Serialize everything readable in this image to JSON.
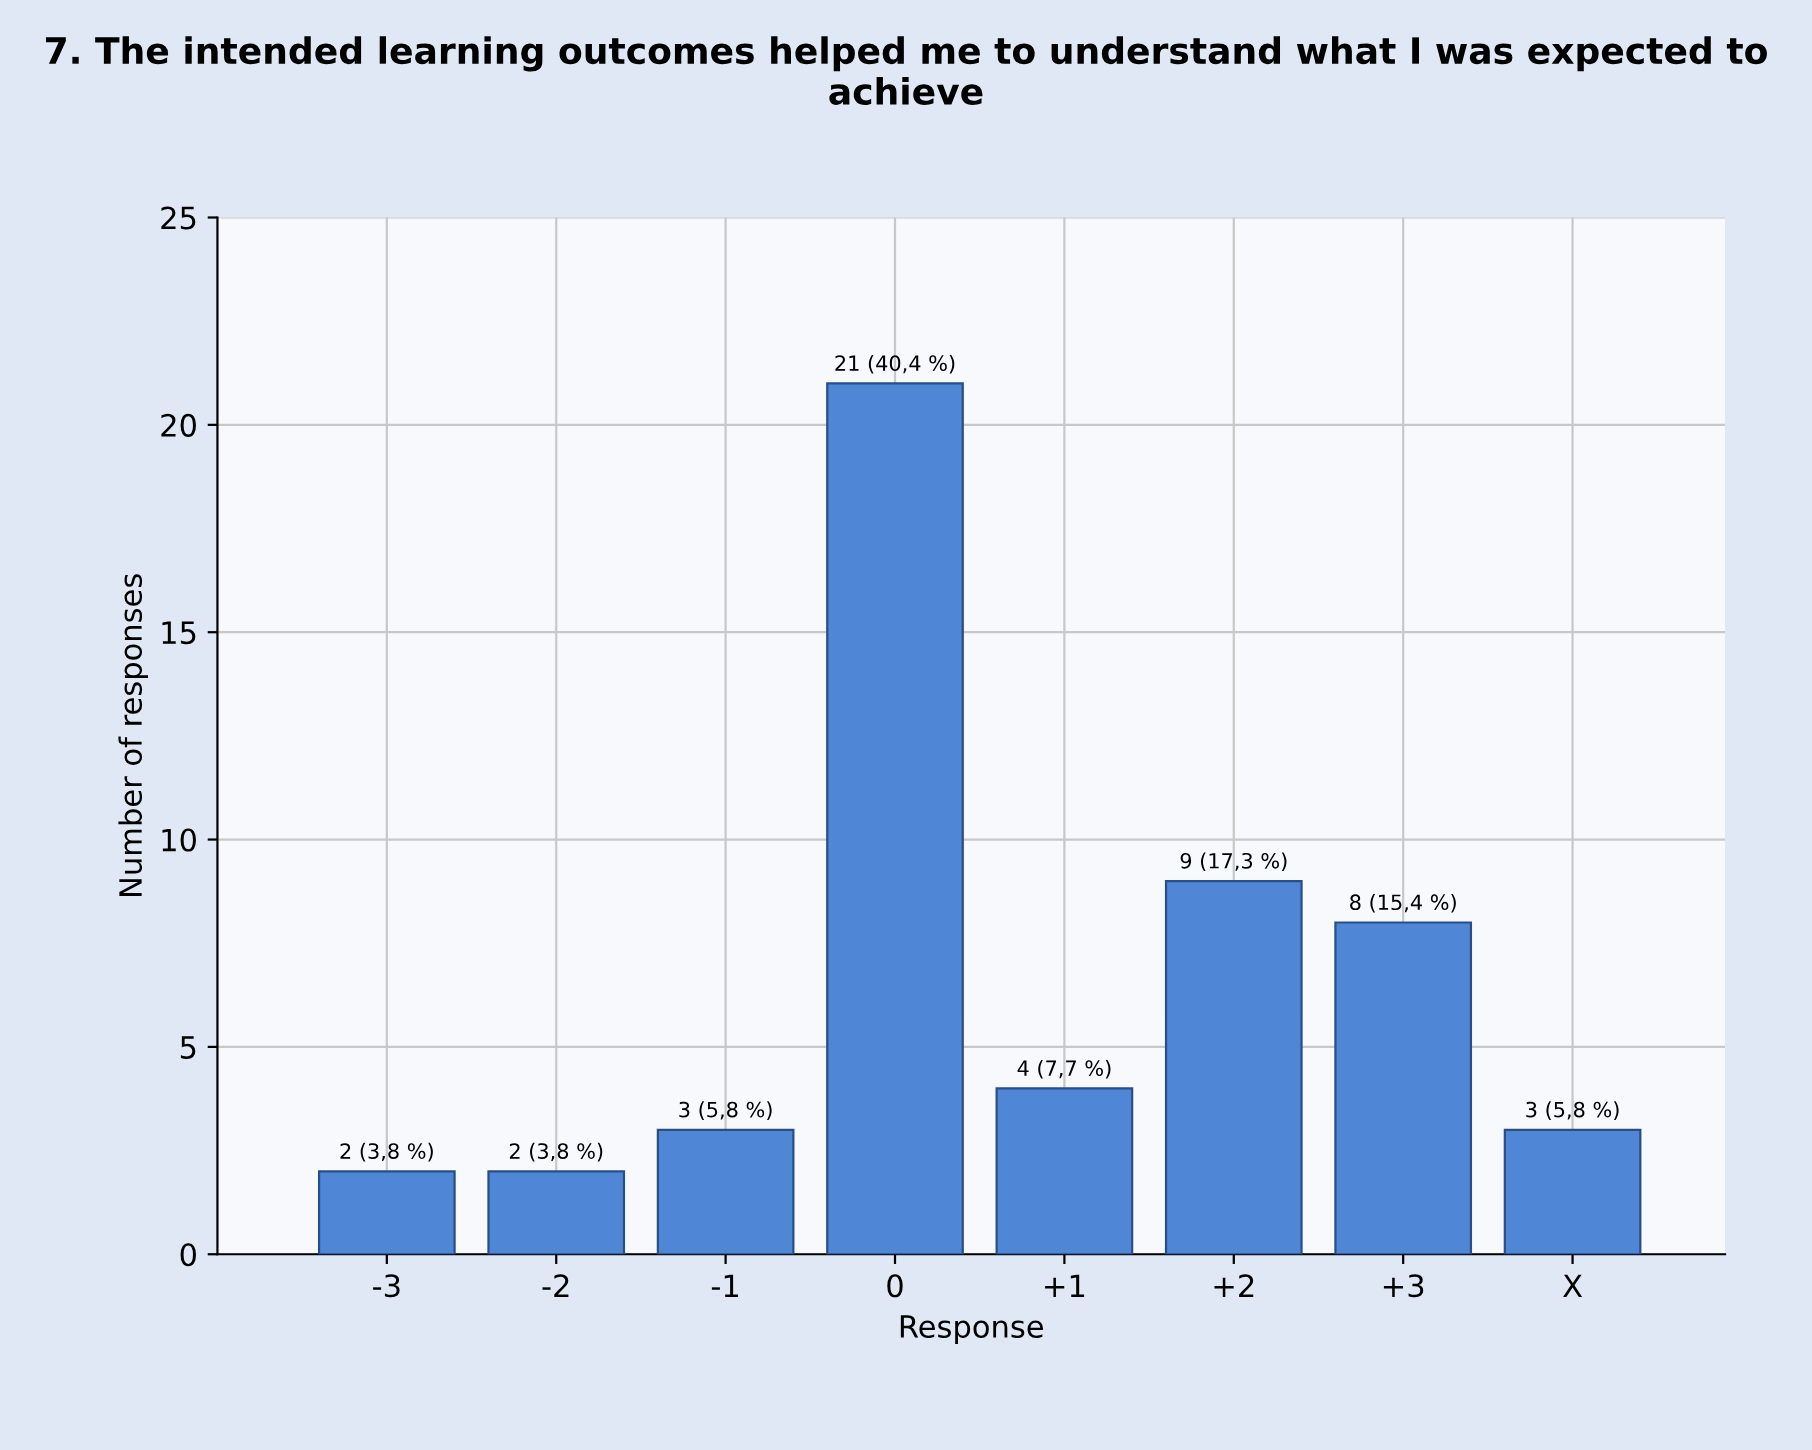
{
  "chart_data": {
    "type": "bar",
    "title": "7. The intended learning outcomes helped me to understand what I was expected to achieve",
    "xlabel": "Response",
    "ylabel": "Number of responses",
    "categories": [
      "-3",
      "-2",
      "-1",
      "0",
      "+1",
      "+2",
      "+3",
      "X"
    ],
    "values": [
      2,
      2,
      3,
      21,
      4,
      9,
      8,
      3
    ],
    "value_labels": [
      "2 (3,8 %)",
      "2 (3,8 %)",
      "3 (5,8 %)",
      "21 (40,4 %)",
      "4 (7,7 %)",
      "9 (17,3 %)",
      "8 (15,4 %)",
      "3 (5,8 %)"
    ],
    "color": "#4f86d6",
    "ylim": [
      0,
      25
    ],
    "yticks": [
      0,
      5,
      10,
      15,
      20,
      25
    ],
    "grid": true,
    "legend": false
  }
}
